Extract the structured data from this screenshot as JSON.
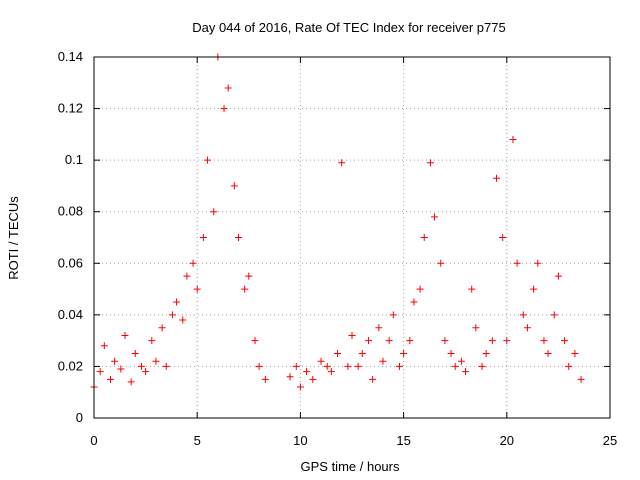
{
  "chart_data": {
    "type": "scatter",
    "title": "Day 044 of 2016, Rate Of TEC Index for receiver p775",
    "xlabel": "GPS time / hours",
    "ylabel": "ROTI / TECUs",
    "xlim": [
      0,
      25
    ],
    "ylim": [
      0,
      0.14
    ],
    "xticks": [
      "0",
      "5",
      "10",
      "15",
      "20",
      "25"
    ],
    "yticks": [
      "0",
      "0.02",
      "0.04",
      "0.06",
      "0.08",
      "0.1",
      "0.12",
      "0.14"
    ],
    "grid": true,
    "marker": "+",
    "marker_color": "#ff0000",
    "series": [
      {
        "name": "ROTI",
        "x": [
          0.0,
          0.3,
          0.5,
          0.8,
          1.0,
          1.3,
          1.5,
          1.8,
          2.0,
          2.3,
          2.5,
          2.8,
          3.0,
          3.3,
          3.5,
          3.8,
          4.0,
          4.3,
          4.5,
          4.8,
          5.0,
          5.3,
          5.5,
          5.8,
          6.0,
          6.3,
          6.5,
          6.8,
          7.0,
          7.3,
          7.5,
          7.8,
          8.0,
          8.3,
          9.5,
          9.8,
          10.0,
          10.3,
          10.6,
          11.0,
          11.3,
          11.5,
          11.8,
          12.0,
          12.3,
          12.5,
          12.8,
          13.0,
          13.3,
          13.5,
          13.8,
          14.0,
          14.3,
          14.5,
          14.8,
          15.0,
          15.3,
          15.5,
          15.8,
          16.0,
          16.3,
          16.5,
          16.8,
          17.0,
          17.3,
          17.5,
          17.8,
          18.0,
          18.3,
          18.5,
          18.8,
          19.0,
          19.3,
          19.5,
          19.8,
          20.0,
          20.3,
          20.5,
          20.8,
          21.0,
          21.3,
          21.5,
          21.8,
          22.0,
          22.3,
          22.5,
          22.8,
          23.0,
          23.3,
          23.6
        ],
        "y": [
          0.012,
          0.018,
          0.028,
          0.015,
          0.022,
          0.019,
          0.032,
          0.014,
          0.025,
          0.02,
          0.018,
          0.03,
          0.022,
          0.035,
          0.02,
          0.04,
          0.045,
          0.038,
          0.055,
          0.06,
          0.05,
          0.07,
          0.1,
          0.08,
          0.14,
          0.12,
          0.128,
          0.09,
          0.07,
          0.05,
          0.055,
          0.03,
          0.02,
          0.015,
          0.016,
          0.02,
          0.012,
          0.018,
          0.015,
          0.022,
          0.02,
          0.018,
          0.025,
          0.099,
          0.02,
          0.032,
          0.02,
          0.025,
          0.03,
          0.015,
          0.035,
          0.022,
          0.03,
          0.04,
          0.02,
          0.025,
          0.03,
          0.045,
          0.05,
          0.07,
          0.099,
          0.078,
          0.06,
          0.03,
          0.025,
          0.02,
          0.022,
          0.018,
          0.05,
          0.035,
          0.02,
          0.025,
          0.03,
          0.093,
          0.07,
          0.03,
          0.108,
          0.06,
          0.04,
          0.035,
          0.05,
          0.06,
          0.03,
          0.025,
          0.04,
          0.055,
          0.03,
          0.02,
          0.025,
          0.015
        ]
      }
    ]
  }
}
